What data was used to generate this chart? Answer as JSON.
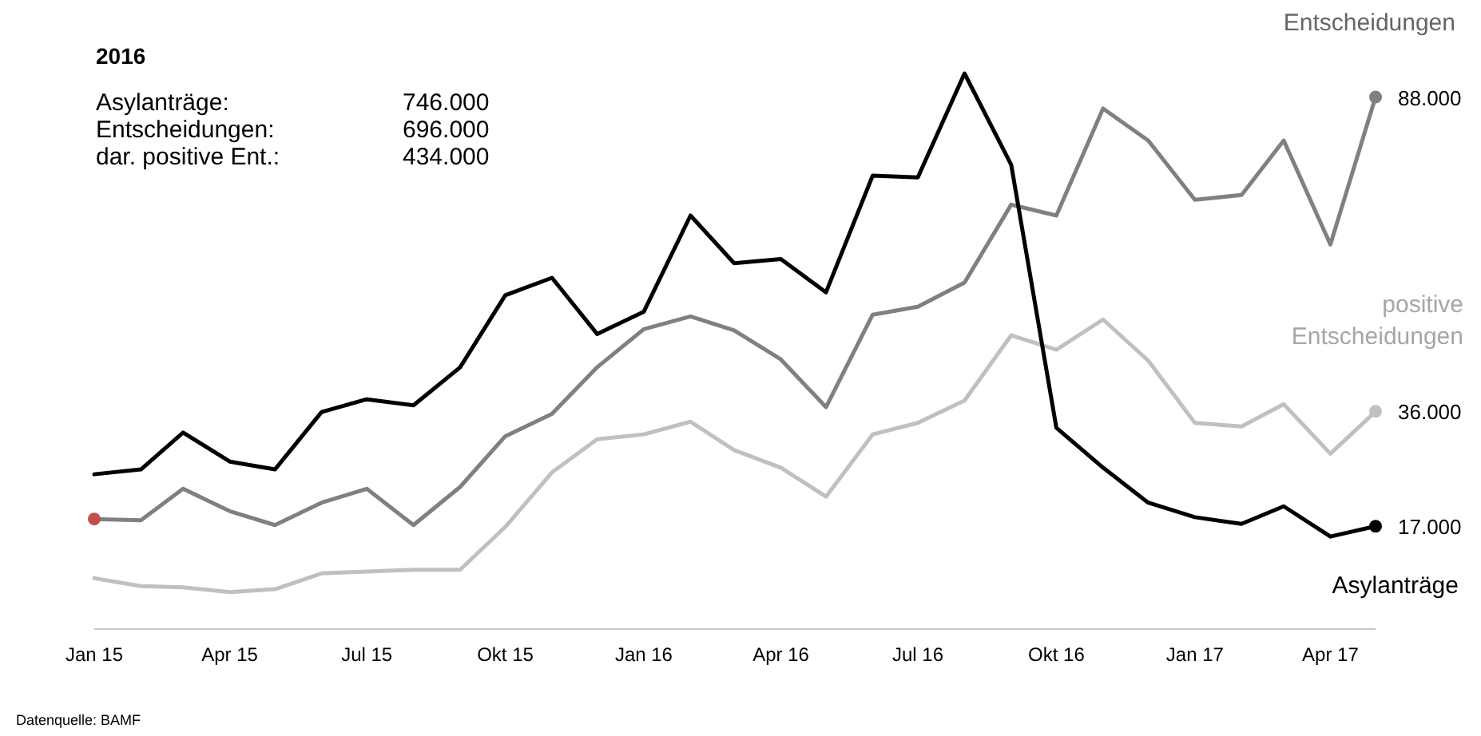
{
  "chart_data": {
    "type": "line",
    "title": "2016",
    "x": [
      "2015-01",
      "2015-02",
      "2015-03",
      "2015-04",
      "2015-05",
      "2015-06",
      "2015-07",
      "2015-08",
      "2015-09",
      "2015-10",
      "2015-11",
      "2015-12",
      "2016-01",
      "2016-02",
      "2016-03",
      "2016-04",
      "2016-05",
      "2016-06",
      "2016-07",
      "2016-08",
      "2016-09",
      "2016-10",
      "2016-11",
      "2016-12",
      "2017-01",
      "2017-02",
      "2017-03",
      "2017-04",
      "2017-05"
    ],
    "xlim": [
      "2015-01",
      "2017-05"
    ],
    "xticks": [
      {
        "value": "2015-01",
        "label": "Jan 15"
      },
      {
        "value": "2015-04",
        "label": "Apr 15"
      },
      {
        "value": "2015-07",
        "label": "Jul 15"
      },
      {
        "value": "2015-10",
        "label": "Okt 15"
      },
      {
        "value": "2016-01",
        "label": "Jan 16"
      },
      {
        "value": "2016-04",
        "label": "Apr 16"
      },
      {
        "value": "2016-07",
        "label": "Jul 16"
      },
      {
        "value": "2016-10",
        "label": "Okt 16"
      },
      {
        "value": "2017-01",
        "label": "Jan 17"
      },
      {
        "value": "2017-04",
        "label": "Apr 17"
      }
    ],
    "series": [
      {
        "name": "Entscheidungen",
        "color": "#808080",
        "values": [
          18200,
          18000,
          23200,
          19500,
          17200,
          20900,
          23200,
          17200,
          23500,
          31900,
          35600,
          43300,
          49600,
          51700,
          49400,
          44600,
          36700,
          52000,
          53300,
          57300,
          70200,
          68400,
          86100,
          80800,
          71000,
          71800,
          80800,
          63600,
          88000
        ],
        "value_labels": [
          null,
          null,
          null,
          null,
          null,
          null,
          null,
          null,
          null,
          null,
          null,
          null,
          null,
          null,
          null,
          null,
          null,
          null,
          null,
          null,
          null,
          null,
          null,
          null,
          null,
          null,
          null,
          null,
          "88.000"
        ]
      },
      {
        "name": "positive Entscheidungen",
        "color": "#c0c0c0",
        "values": [
          8400,
          7100,
          6900,
          6100,
          6600,
          9200,
          9500,
          9800,
          9800,
          16900,
          25900,
          31400,
          32200,
          34300,
          29600,
          26700,
          21900,
          32200,
          34100,
          37800,
          48600,
          46200,
          51200,
          44400,
          34100,
          33500,
          37200,
          29000,
          36000
        ],
        "value_labels": [
          null,
          null,
          null,
          null,
          null,
          null,
          null,
          null,
          null,
          null,
          null,
          null,
          null,
          null,
          null,
          null,
          null,
          null,
          null,
          null,
          null,
          null,
          null,
          null,
          null,
          null,
          null,
          null,
          "36.000"
        ]
      },
      {
        "name": "Asylanträge",
        "color": "#000000",
        "values": [
          25600,
          26400,
          32500,
          27700,
          26400,
          35900,
          38000,
          37000,
          43300,
          55200,
          58100,
          48800,
          52500,
          68400,
          60500,
          61200,
          55700,
          75000,
          74700,
          91900,
          76800,
          33300,
          26700,
          20900,
          18500,
          17400,
          20300,
          15300,
          17000
        ],
        "value_labels": [
          null,
          null,
          null,
          null,
          null,
          null,
          null,
          null,
          null,
          null,
          null,
          null,
          null,
          null,
          null,
          null,
          null,
          null,
          null,
          null,
          null,
          null,
          null,
          null,
          null,
          null,
          null,
          null,
          "17.000"
        ]
      },
      {
        "type": "scatter",
        "color": "#c0504d",
        "x": [
          "2015-01"
        ],
        "values": [
          18200
        ]
      }
    ],
    "annotations": [
      "Asylanträge:",
      "746.000",
      "Entscheidungen:",
      "696.000",
      "dar. positive Ent.:",
      "434.000",
      "Datenquelle: BAMF"
    ]
  }
}
